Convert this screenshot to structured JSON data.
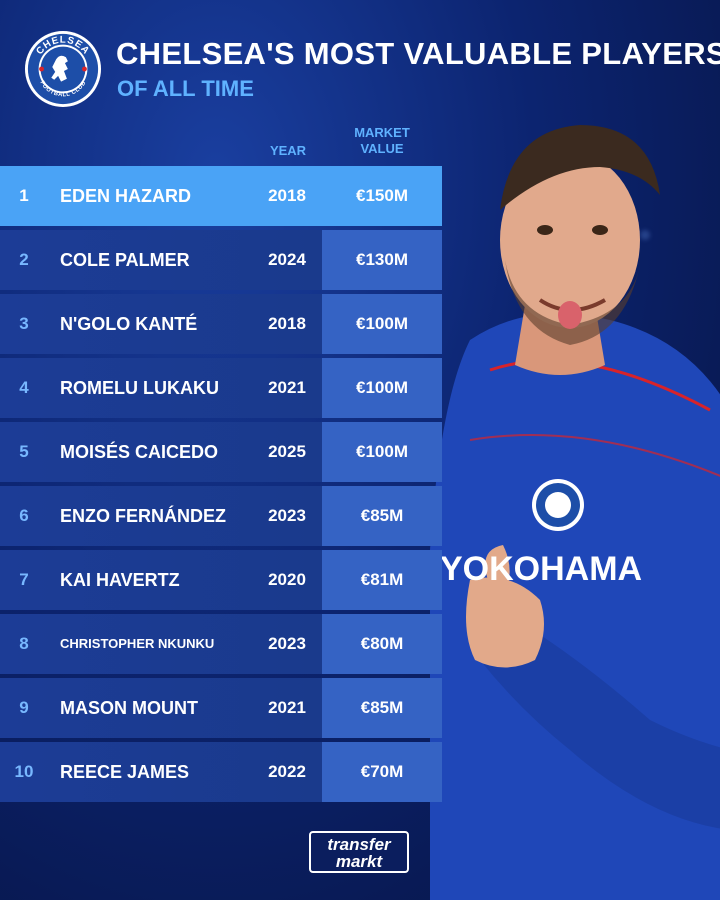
{
  "header": {
    "title": "CHELSEA'S MOST VALUABLE PLAYERS",
    "subtitle": "OF ALL TIME",
    "crest_text_top": "CHELSEA",
    "crest_text_bottom": "FOOTBALL CLUB"
  },
  "columns": {
    "year": "YEAR",
    "market_value_line1": "MARKET",
    "market_value_line2": "VALUE"
  },
  "players": [
    {
      "rank": "1",
      "name": "EDEN HAZARD",
      "year": "2018",
      "value": "€150M"
    },
    {
      "rank": "2",
      "name": "COLE PALMER",
      "year": "2024",
      "value": "€130M"
    },
    {
      "rank": "3",
      "name": "N'GOLO KANTÉ",
      "year": "2018",
      "value": "€100M"
    },
    {
      "rank": "4",
      "name": "ROMELU LUKAKU",
      "year": "2021",
      "value": "€100M"
    },
    {
      "rank": "5",
      "name": "MOISÉS CAICEDO",
      "year": "2025",
      "value": "€100M"
    },
    {
      "rank": "6",
      "name": "ENZO FERNÁNDEZ",
      "year": "2023",
      "value": "€85M"
    },
    {
      "rank": "7",
      "name": "KAI HAVERTZ",
      "year": "2020",
      "value": "€81M"
    },
    {
      "rank": "8",
      "name": "CHRISTOPHER NKUNKU",
      "year": "2023",
      "value": "€80M"
    },
    {
      "rank": "9",
      "name": "MASON MOUNT",
      "year": "2021",
      "value": "€85M"
    },
    {
      "rank": "10",
      "name": "REECE JAMES",
      "year": "2022",
      "value": "€70M"
    }
  ],
  "shirt_sponsor": "YOKOHAMA",
  "logo": {
    "line1": "transfer",
    "line2": "markt"
  },
  "colors": {
    "accent": "#4aa3f6",
    "subtitle": "#5fb2ff",
    "row": "#1c3c96",
    "value_cell": "#3563c4"
  }
}
